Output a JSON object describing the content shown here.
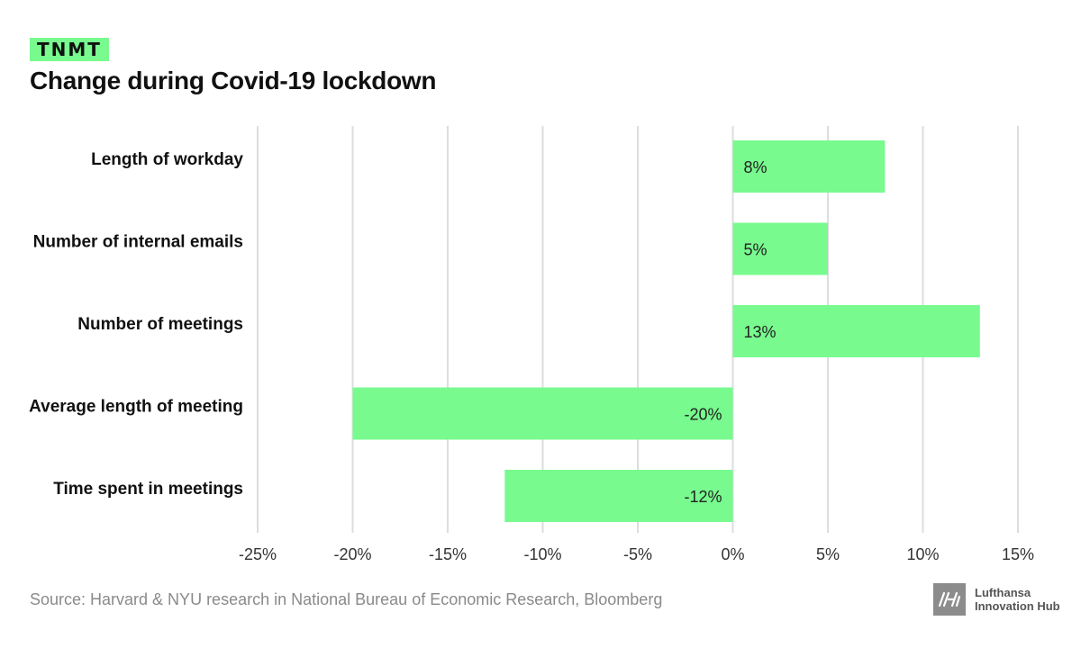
{
  "brand": {
    "tag": "TNMT"
  },
  "header": {
    "title": "Change during Covid-19 lockdown"
  },
  "chart_data": {
    "type": "bar",
    "orientation": "horizontal",
    "title": "Change during Covid-19 lockdown",
    "categories": [
      "Length of workday",
      "Number of internal emails",
      "Number of meetings",
      "Average length of meeting",
      "Time spent in meetings"
    ],
    "values": [
      8,
      5,
      13,
      -20,
      -12
    ],
    "data_labels": [
      "8%",
      "5%",
      "13%",
      "-20%",
      "-12%"
    ],
    "xlim": [
      -25,
      15
    ],
    "xticks": [
      -25,
      -20,
      -15,
      -10,
      -5,
      0,
      5,
      10,
      15
    ],
    "xtick_labels": [
      "-25%",
      "-20%",
      "-15%",
      "-10%",
      "-5%",
      "0%",
      "5%",
      "10%",
      "15%"
    ],
    "xlabel": "",
    "ylabel": "",
    "grid": true,
    "bar_color": "#78fa8e",
    "grid_color": "#dddddd"
  },
  "footer": {
    "source": "Source: Harvard & NYU research in National Bureau of Economic Research, Bloomberg",
    "org_line1": "Lufthansa",
    "org_line2": "Innovation Hub",
    "org_logo_text": "LIH"
  }
}
